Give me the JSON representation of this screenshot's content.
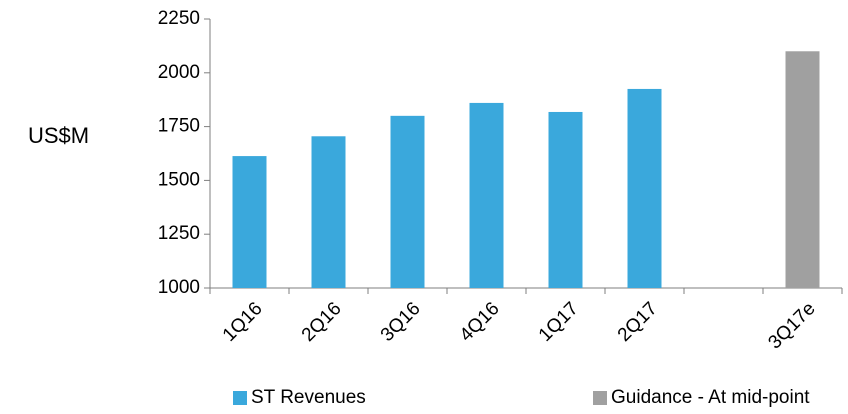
{
  "chart_data": {
    "type": "bar",
    "y_label": "US$M",
    "categories": [
      "1Q16",
      "2Q16",
      "3Q16",
      "4Q16",
      "1Q17",
      "2Q17",
      null,
      "3Q17e"
    ],
    "series": [
      {
        "name": "ST Revenues",
        "color": "#3aa8dc",
        "values": [
          1613,
          1705,
          1800,
          1860,
          1818,
          1925,
          null,
          null
        ]
      },
      {
        "name": "Guidance - At mid-point",
        "color": "#a0a0a0",
        "values": [
          null,
          null,
          null,
          null,
          null,
          null,
          null,
          2100
        ]
      }
    ],
    "ylim": [
      1000,
      2250
    ],
    "yticks": [
      1000,
      1250,
      1500,
      1750,
      2000,
      2250
    ],
    "grid": false,
    "legend": "bottom"
  }
}
